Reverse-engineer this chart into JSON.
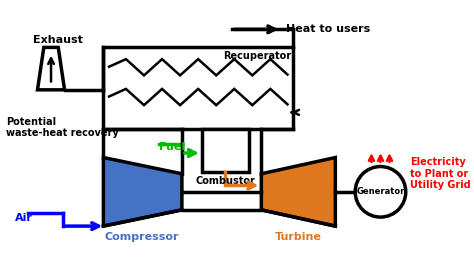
{
  "bg_color": "#ffffff",
  "compressor_color": "#4472c4",
  "turbine_color": "#e07820",
  "air_arrow_color": "#0000ff",
  "fuel_arrow_color": "#00bb00",
  "combustor_arrow_color": "#e07820",
  "electricity_arrow_color": "#ff0000",
  "line_color": "#000000",
  "label_compressor": "Compressor",
  "label_turbine": "Turbine",
  "label_generator": "Generator",
  "label_recuperator": "Recuperator",
  "label_combustor": "Combustor",
  "label_air": "Air",
  "label_fuel": "Fuel",
  "label_exhaust": "Exhaust",
  "label_heat_users": "Heat to users",
  "label_waste_heat": "Potential\nwaste-heat recovery",
  "label_electricity": "Electricity\nto Plant or\nUtility Grid"
}
